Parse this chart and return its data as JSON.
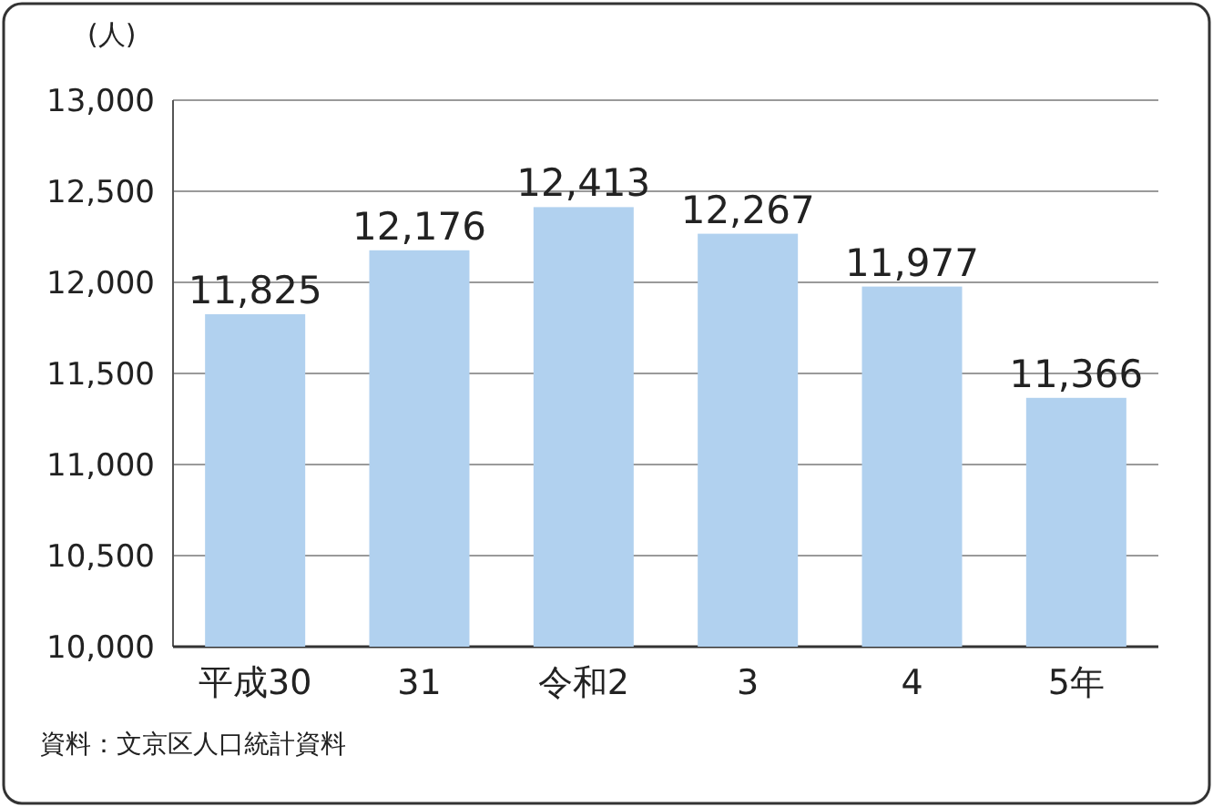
{
  "chart_data": {
    "type": "bar",
    "ylabel": "(人)",
    "categories": [
      "平成30",
      "31",
      "令和2",
      "3",
      "4",
      "5年"
    ],
    "values": [
      11825,
      12176,
      12413,
      12267,
      11977,
      11366
    ],
    "value_labels": [
      "11,825",
      "12,176",
      "12,413",
      "12,267",
      "11,977",
      "11,366"
    ],
    "color": "#b1d1ef",
    "ylim": [
      10000,
      13000
    ],
    "yticks": [
      {
        "value": 10000,
        "label": "10,000"
      },
      {
        "value": 10500,
        "label": "10,500"
      },
      {
        "value": 11000,
        "label": "11,000"
      },
      {
        "value": 11500,
        "label": "11,500"
      },
      {
        "value": 12000,
        "label": "12,000"
      },
      {
        "value": 12500,
        "label": "12,500"
      },
      {
        "value": 13000,
        "label": "13,000"
      }
    ],
    "grid": "y",
    "annotations": [
      "資料：文京区人口統計資料"
    ]
  }
}
